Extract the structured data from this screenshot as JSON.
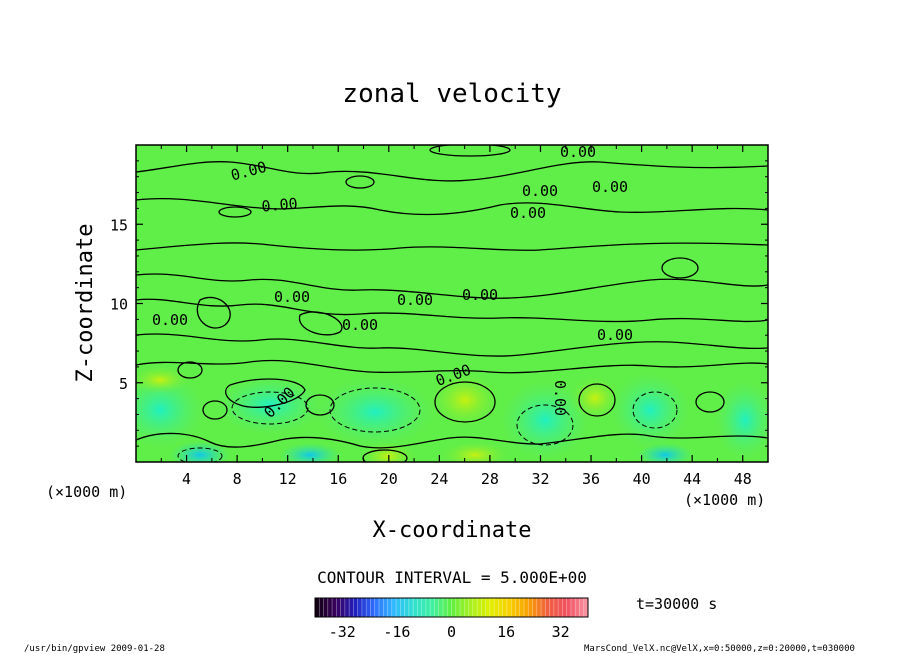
{
  "chart_data": {
    "type": "heatmap",
    "title": "zonal velocity",
    "xlabel": "X-coordinate",
    "ylabel": "Z-coordinate",
    "x_unit": "(×1000 m)",
    "y_unit": "(×1000 m)",
    "xlim": [
      0,
      50
    ],
    "ylim": [
      0,
      20
    ],
    "x_ticks": [
      4,
      8,
      12,
      16,
      20,
      24,
      28,
      32,
      36,
      40,
      44,
      48
    ],
    "y_ticks": [
      5,
      10,
      15
    ],
    "contour_interval_text": "CONTOUR INTERVAL = 5.000E+00",
    "contour_label": "0.00",
    "time_text": "t=30000 s",
    "colorbar": {
      "min": -40,
      "max": 40,
      "ticks": [
        -32,
        -16,
        0,
        16,
        32
      ],
      "colors": [
        "#120014",
        "#3a0060",
        "#2020c0",
        "#3070ff",
        "#30b8ff",
        "#30e0d0",
        "#40f0a0",
        "#60f040",
        "#a8f020",
        "#e0f000",
        "#f8d000",
        "#f8a000",
        "#f06040",
        "#f05060",
        "#f890a0"
      ]
    },
    "footer_left": "/usr/bin/gpview   2009-01-28",
    "footer_right": "MarsCond_VelX.nc@VelX,x=0:50000,z=0:20000,t=030000"
  }
}
